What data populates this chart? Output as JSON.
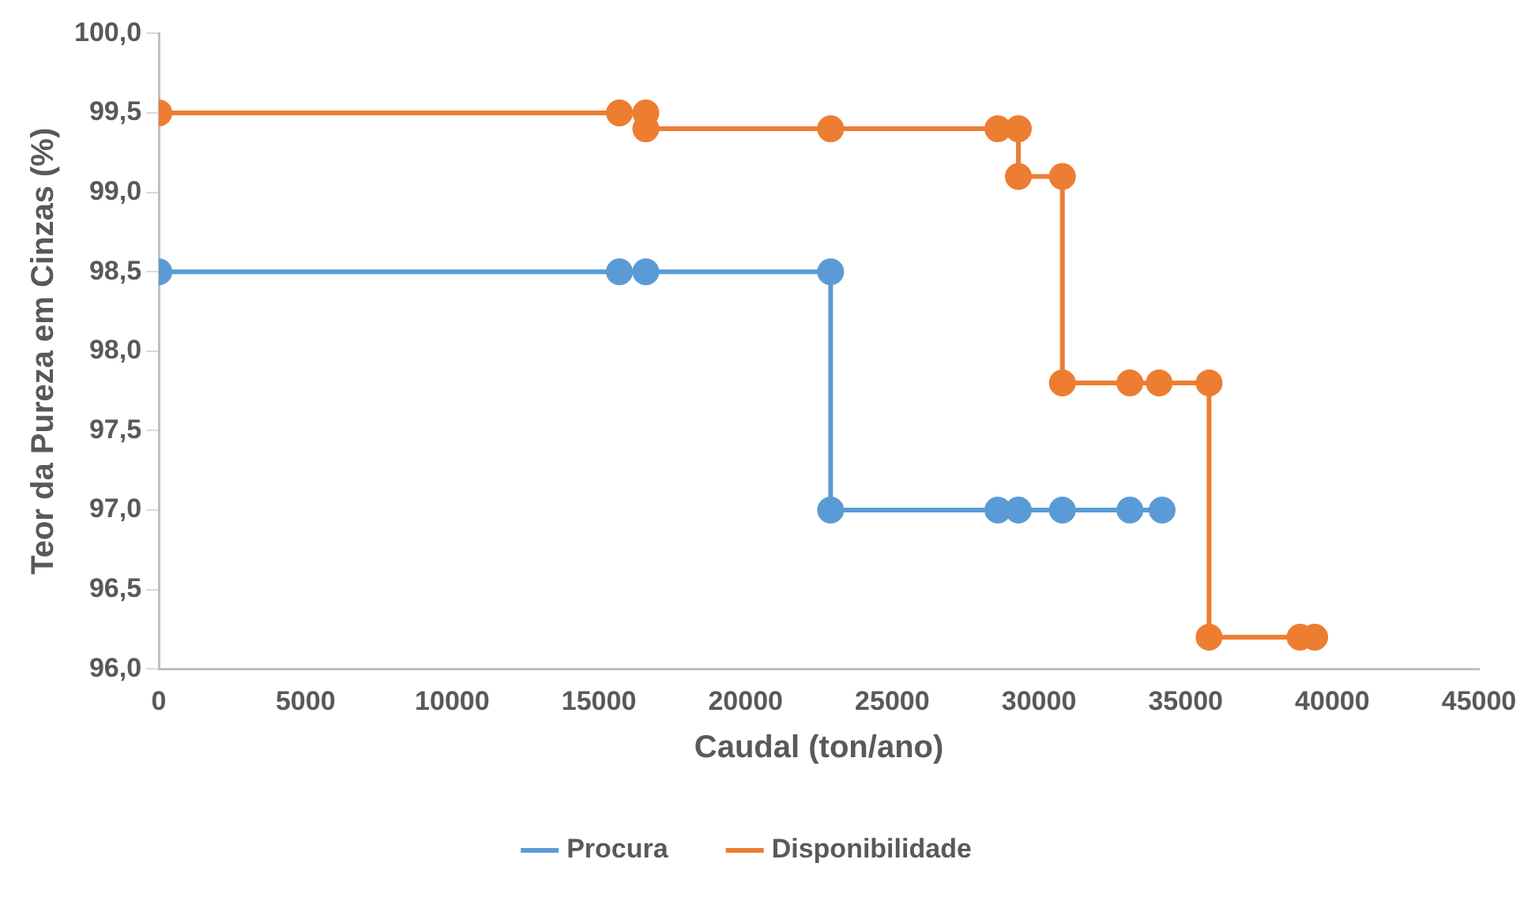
{
  "chart_data": {
    "type": "line",
    "xlabel": "Caudal (ton/ano)",
    "ylabel": "Teor da Pureza em Cinzas (%)",
    "xlim": [
      0,
      45000
    ],
    "xticks": [
      0,
      5000,
      10000,
      15000,
      20000,
      25000,
      30000,
      35000,
      40000,
      45000
    ],
    "ylim": [
      96,
      100
    ],
    "yticks": [
      {
        "value": 96,
        "label": "96,0"
      },
      {
        "value": 96.5,
        "label": "96,5"
      },
      {
        "value": 97,
        "label": "97,0"
      },
      {
        "value": 97.5,
        "label": "97,5"
      },
      {
        "value": 98,
        "label": "98,0"
      },
      {
        "value": 98.5,
        "label": "98,5"
      },
      {
        "value": 99,
        "label": "99,0"
      },
      {
        "value": 99.5,
        "label": "99,5"
      },
      {
        "value": 100,
        "label": "100,0"
      }
    ],
    "legend": "bottom",
    "marker": "circle",
    "line_style": "solid",
    "series": [
      {
        "name": "Procura",
        "color": "#5b9bd5",
        "x": [
          0,
          15700,
          16600,
          22900,
          22900,
          28600,
          29300,
          30800,
          33100,
          34200
        ],
        "values": [
          98.5,
          98.5,
          98.5,
          98.5,
          97.0,
          97.0,
          97.0,
          97.0,
          97.0,
          97.0
        ]
      },
      {
        "name": "Disponibilidade",
        "color": "#ed7d31",
        "x": [
          0,
          15700,
          16600,
          16600,
          22900,
          28600,
          29300,
          29300,
          30800,
          30800,
          33100,
          34100,
          35800,
          35800,
          38900,
          39400
        ],
        "values": [
          99.5,
          99.5,
          99.5,
          99.4,
          99.4,
          99.4,
          99.4,
          99.1,
          99.1,
          97.8,
          97.8,
          97.8,
          97.8,
          96.2,
          96.2,
          96.2
        ]
      }
    ]
  }
}
